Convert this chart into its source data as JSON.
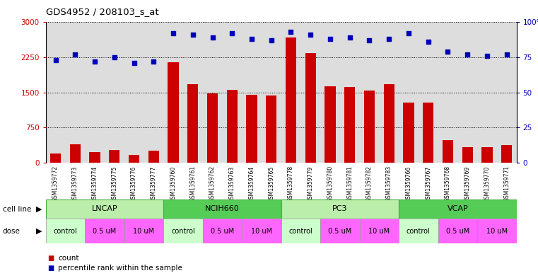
{
  "title": "GDS4952 / 208103_s_at",
  "samples": [
    "GSM1359772",
    "GSM1359773",
    "GSM1359774",
    "GSM1359775",
    "GSM1359776",
    "GSM1359777",
    "GSM1359760",
    "GSM1359761",
    "GSM1359762",
    "GSM1359763",
    "GSM1359764",
    "GSM1359765",
    "GSM1359778",
    "GSM1359779",
    "GSM1359780",
    "GSM1359781",
    "GSM1359782",
    "GSM1359783",
    "GSM1359766",
    "GSM1359767",
    "GSM1359768",
    "GSM1359769",
    "GSM1359770",
    "GSM1359771"
  ],
  "counts": [
    200,
    390,
    230,
    270,
    170,
    250,
    2150,
    1680,
    1480,
    1560,
    1450,
    1440,
    2680,
    2340,
    1630,
    1610,
    1540,
    1670,
    1290,
    1280,
    480,
    330,
    330,
    370
  ],
  "percentile_ranks": [
    73,
    77,
    72,
    75,
    71,
    72,
    92,
    91,
    89,
    92,
    88,
    87,
    93,
    91,
    88,
    89,
    87,
    88,
    92,
    86,
    79,
    77,
    76,
    77
  ],
  "cell_lines": [
    {
      "name": "LNCAP",
      "start": 0,
      "end": 6
    },
    {
      "name": "NCIH660",
      "start": 6,
      "end": 12
    },
    {
      "name": "PC3",
      "start": 12,
      "end": 18
    },
    {
      "name": "VCAP",
      "start": 18,
      "end": 24
    }
  ],
  "dose_structure": [
    {
      "label": "control",
      "color": "#ccffcc",
      "span": 2
    },
    {
      "label": "0.5 uM",
      "color": "#ff66ff",
      "span": 2
    },
    {
      "label": "10 uM",
      "color": "#ff66ff",
      "span": 2
    }
  ],
  "bar_color": "#cc0000",
  "dot_color": "#0000bb",
  "cell_line_color_light": "#aaffaa",
  "cell_line_color_dark": "#44cc44",
  "cell_line_border": "#44aa44",
  "xtick_bg": "#cccccc",
  "ylim_left": [
    0,
    3000
  ],
  "ylim_right": [
    0,
    100
  ],
  "yticks_left": [
    0,
    750,
    1500,
    2250,
    3000
  ],
  "yticks_right": [
    0,
    25,
    50,
    75,
    100
  ],
  "legend_count": "count",
  "legend_pct": "percentile rank within the sample"
}
